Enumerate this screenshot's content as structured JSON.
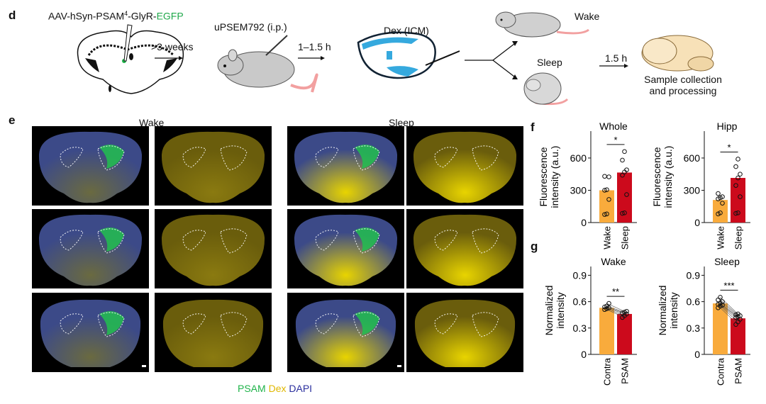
{
  "panel_d": {
    "label": "d",
    "virus_prefix": "AAV-hSyn-PSAM",
    "virus_sup": "4",
    "virus_mid": "-GlyR-",
    "virus_egfp": "EGFP",
    "step1": ">3 weeks",
    "drug": "uPSEM792 (i.p.)",
    "step2": "1–1.5 h",
    "dex": "Dex (ICM)",
    "wake": "Wake",
    "sleep": "Sleep",
    "step3": "1.5 h",
    "final_line1": "Sample collection",
    "final_line2": "and processing"
  },
  "panel_e": {
    "label": "e",
    "wake_header": "Wake",
    "sleep_header": "Sleep",
    "legend": {
      "psam": "PSAM",
      "dex": "Dex",
      "dapi": "DAPI"
    },
    "colors": {
      "psam": "#1fb34a",
      "dex": "#e8c400",
      "dapi": "#2b2f9e"
    }
  },
  "panel_f_label": "f",
  "panel_g_label": "g",
  "colors": {
    "wake_bar": "#f9ab3c",
    "sleep_bar": "#cc0a1c"
  },
  "chart_data": [
    {
      "type": "bar",
      "panel": "f",
      "title": "Whole",
      "ylabel": [
        "Fluorescence",
        "intensity (a.u.)"
      ],
      "categories": [
        "Wake",
        "Sleep"
      ],
      "values": [
        300,
        465
      ],
      "ylim": [
        0,
        850
      ],
      "yticks": [
        0,
        300,
        600
      ],
      "significance": "*",
      "points": [
        [
          75,
          80,
          215,
          300,
          305,
          425,
          430
        ],
        [
          85,
          90,
          260,
          440,
          470,
          490,
          580,
          660
        ]
      ]
    },
    {
      "type": "bar",
      "panel": "f",
      "title": "Hipp",
      "ylabel": [
        "Fluorescence",
        "intensity (a.u.)"
      ],
      "categories": [
        "Wake",
        "Sleep"
      ],
      "values": [
        210,
        415
      ],
      "ylim": [
        0,
        850
      ],
      "yticks": [
        0,
        300,
        600
      ],
      "significance": "*",
      "points": [
        [
          80,
          90,
          180,
          220,
          230,
          240,
          270
        ],
        [
          85,
          90,
          240,
          345,
          415,
          450,
          520,
          590
        ]
      ]
    },
    {
      "type": "bar",
      "panel": "g",
      "title": "Wake",
      "ylabel": [
        "Normalized",
        "intensity"
      ],
      "categories": [
        "Contra",
        "PSAM"
      ],
      "values": [
        0.53,
        0.46
      ],
      "ylim": [
        0,
        1.0
      ],
      "yticks": [
        0,
        0.3,
        0.6,
        0.9
      ],
      "significance": "**",
      "points": [
        [
          0.51,
          0.52,
          0.53,
          0.54,
          0.55,
          0.58
        ],
        [
          0.42,
          0.44,
          0.46,
          0.47,
          0.48,
          0.49
        ]
      ]
    },
    {
      "type": "bar",
      "panel": "g",
      "title": "Sleep",
      "ylabel": [
        "Normalized",
        "intensity"
      ],
      "categories": [
        "Contra",
        "PSAM"
      ],
      "values": [
        0.58,
        0.41
      ],
      "ylim": [
        0,
        1.0
      ],
      "yticks": [
        0,
        0.3,
        0.6,
        0.9
      ],
      "significance": "***",
      "points": [
        [
          0.53,
          0.55,
          0.56,
          0.57,
          0.58,
          0.6,
          0.62,
          0.65
        ],
        [
          0.34,
          0.37,
          0.4,
          0.42,
          0.43,
          0.44,
          0.45,
          0.46
        ]
      ]
    }
  ]
}
